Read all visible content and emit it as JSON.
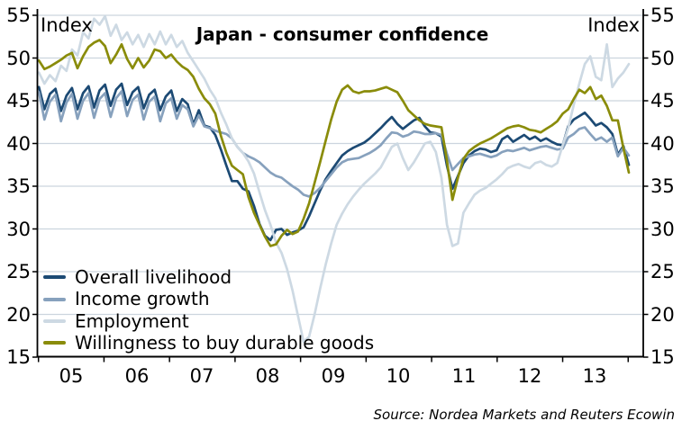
{
  "header": {
    "title": "Japan - consumer confidence",
    "index_label_left": "Index",
    "index_label_right": "Index"
  },
  "source": "Source: Nordea Markets and Reuters Ecowin",
  "chart_data": {
    "type": "line",
    "title": "Japan - consumer confidence",
    "xlabel": "",
    "ylabel": "Index",
    "ylim": [
      15,
      55
    ],
    "grid": true,
    "legend_position": "inside-bottom-left",
    "x_unit": "monthly",
    "x_start": "2005-01",
    "x_end": "2013-12",
    "x_tick_labels": [
      "05",
      "06",
      "07",
      "08",
      "09",
      "10",
      "11",
      "12",
      "13"
    ],
    "y_ticks": [
      55,
      50,
      45,
      40,
      35,
      30,
      25,
      20,
      15
    ],
    "colors": {
      "grid": "#ccd5de",
      "axis": "#000000",
      "text": "#000000"
    },
    "series": [
      {
        "name": "Overall livelihood",
        "color": "#1c4a74",
        "values": [
          46.6,
          44.0,
          45.8,
          46.4,
          43.8,
          45.6,
          46.5,
          44.0,
          45.9,
          46.7,
          44.2,
          46.2,
          46.9,
          44.4,
          46.3,
          47.0,
          44.5,
          46.0,
          46.6,
          44.1,
          45.7,
          46.3,
          43.9,
          45.5,
          46.2,
          43.8,
          45.2,
          44.6,
          42.2,
          43.9,
          42.1,
          41.9,
          41.0,
          39.3,
          37.4,
          35.6,
          35.6,
          34.7,
          34.4,
          32.7,
          30.6,
          29.2,
          28.7,
          29.9,
          30.0,
          29.3,
          29.6,
          29.8,
          30.2,
          31.5,
          33.0,
          34.5,
          35.8,
          36.8,
          37.7,
          38.6,
          39.1,
          39.5,
          39.8,
          40.1,
          40.6,
          41.2,
          41.8,
          42.5,
          43.1,
          42.3,
          41.7,
          42.2,
          42.7,
          43.0,
          42.0,
          41.3,
          41.2,
          40.8,
          37.4,
          34.7,
          36.2,
          37.7,
          38.6,
          39.1,
          39.4,
          39.3,
          39.0,
          39.2,
          40.5,
          40.9,
          40.2,
          40.6,
          41.0,
          40.5,
          40.8,
          40.3,
          40.6,
          40.2,
          39.9,
          39.8,
          42.0,
          42.8,
          43.2,
          43.6,
          42.9,
          42.1,
          42.4,
          41.9,
          41.1,
          38.7,
          39.7,
          37.5
        ]
      },
      {
        "name": "Income growth",
        "color": "#87a1bd",
        "values": [
          46.0,
          42.8,
          44.9,
          45.7,
          42.6,
          44.8,
          45.8,
          42.9,
          45.0,
          45.9,
          43.0,
          45.2,
          45.9,
          43.1,
          45.3,
          46.1,
          43.2,
          45.1,
          45.7,
          42.8,
          44.9,
          45.5,
          42.6,
          44.7,
          45.3,
          42.9,
          44.5,
          44.0,
          42.0,
          43.3,
          42.0,
          41.8,
          41.5,
          41.3,
          41.1,
          40.6,
          39.6,
          38.9,
          38.5,
          38.2,
          37.8,
          37.2,
          36.6,
          36.2,
          36.0,
          35.5,
          35.0,
          34.6,
          34.0,
          33.8,
          34.2,
          34.8,
          35.6,
          36.4,
          37.2,
          37.8,
          38.1,
          38.2,
          38.3,
          38.6,
          38.9,
          39.3,
          39.8,
          40.6,
          41.3,
          41.2,
          40.8,
          41.0,
          41.4,
          41.3,
          41.1,
          41.1,
          41.2,
          41.0,
          38.8,
          36.9,
          37.6,
          38.3,
          38.5,
          38.7,
          38.8,
          38.6,
          38.4,
          38.6,
          39.0,
          39.2,
          39.1,
          39.3,
          39.5,
          39.2,
          39.4,
          39.6,
          39.7,
          39.5,
          39.3,
          39.4,
          40.7,
          41.1,
          41.7,
          41.9,
          41.1,
          40.4,
          40.7,
          40.2,
          40.7,
          38.5,
          39.5,
          38.6
        ]
      },
      {
        "name": "Employment",
        "color": "#cdd9e3",
        "values": [
          48.3,
          47.0,
          48.0,
          47.3,
          49.1,
          48.5,
          51.0,
          50.3,
          53.0,
          52.3,
          54.6,
          53.9,
          54.9,
          52.6,
          53.9,
          52.1,
          53.0,
          51.6,
          52.7,
          51.3,
          52.8,
          51.6,
          53.1,
          51.6,
          52.7,
          51.3,
          52.0,
          50.6,
          49.6,
          48.6,
          47.6,
          46.3,
          45.3,
          43.6,
          42.2,
          40.6,
          39.6,
          38.9,
          37.9,
          36.5,
          34.3,
          32.2,
          30.5,
          28.4,
          27.2,
          25.3,
          22.8,
          19.8,
          16.8,
          17.4,
          20.0,
          23.0,
          25.8,
          28.3,
          30.5,
          31.8,
          32.9,
          33.8,
          34.6,
          35.3,
          35.9,
          36.5,
          37.2,
          38.4,
          39.6,
          40.0,
          38.3,
          36.9,
          37.8,
          38.9,
          40.0,
          40.2,
          39.0,
          36.0,
          30.5,
          28.0,
          28.3,
          31.9,
          33.0,
          34.0,
          34.5,
          34.8,
          35.3,
          35.8,
          36.4,
          37.1,
          37.4,
          37.6,
          37.3,
          37.1,
          37.7,
          37.9,
          37.5,
          37.3,
          37.7,
          39.8,
          41.8,
          44.5,
          47.0,
          49.3,
          50.2,
          47.8,
          47.4,
          51.6,
          46.6,
          47.6,
          48.3,
          49.3
        ]
      },
      {
        "name": "Willingness to buy durable goods",
        "color": "#8a8c0a",
        "values": [
          49.7,
          48.7,
          49.0,
          49.4,
          49.8,
          50.3,
          50.6,
          48.8,
          50.2,
          51.3,
          51.8,
          52.1,
          51.4,
          49.4,
          50.4,
          51.6,
          49.9,
          48.8,
          50.0,
          48.9,
          49.7,
          51.0,
          50.8,
          50.0,
          50.4,
          49.6,
          49.0,
          48.6,
          47.8,
          46.4,
          45.3,
          44.6,
          43.5,
          40.9,
          38.9,
          37.4,
          36.9,
          36.4,
          33.7,
          31.9,
          30.5,
          29.1,
          28.0,
          28.2,
          29.2,
          29.9,
          29.4,
          29.7,
          31.2,
          33.0,
          35.4,
          37.8,
          40.3,
          42.8,
          44.9,
          46.3,
          46.8,
          46.1,
          45.9,
          46.1,
          46.1,
          46.2,
          46.4,
          46.6,
          46.3,
          46.0,
          45.0,
          43.9,
          43.3,
          42.7,
          42.3,
          42.1,
          42.0,
          41.9,
          38.0,
          33.4,
          36.0,
          38.2,
          39.1,
          39.6,
          40.0,
          40.3,
          40.6,
          41.0,
          41.4,
          41.8,
          42.0,
          42.1,
          41.9,
          41.6,
          41.5,
          41.3,
          41.7,
          42.1,
          42.6,
          43.5,
          44.0,
          45.2,
          46.3,
          45.9,
          46.6,
          45.2,
          45.6,
          44.4,
          42.7,
          42.7,
          39.5,
          36.6
        ]
      }
    ]
  }
}
